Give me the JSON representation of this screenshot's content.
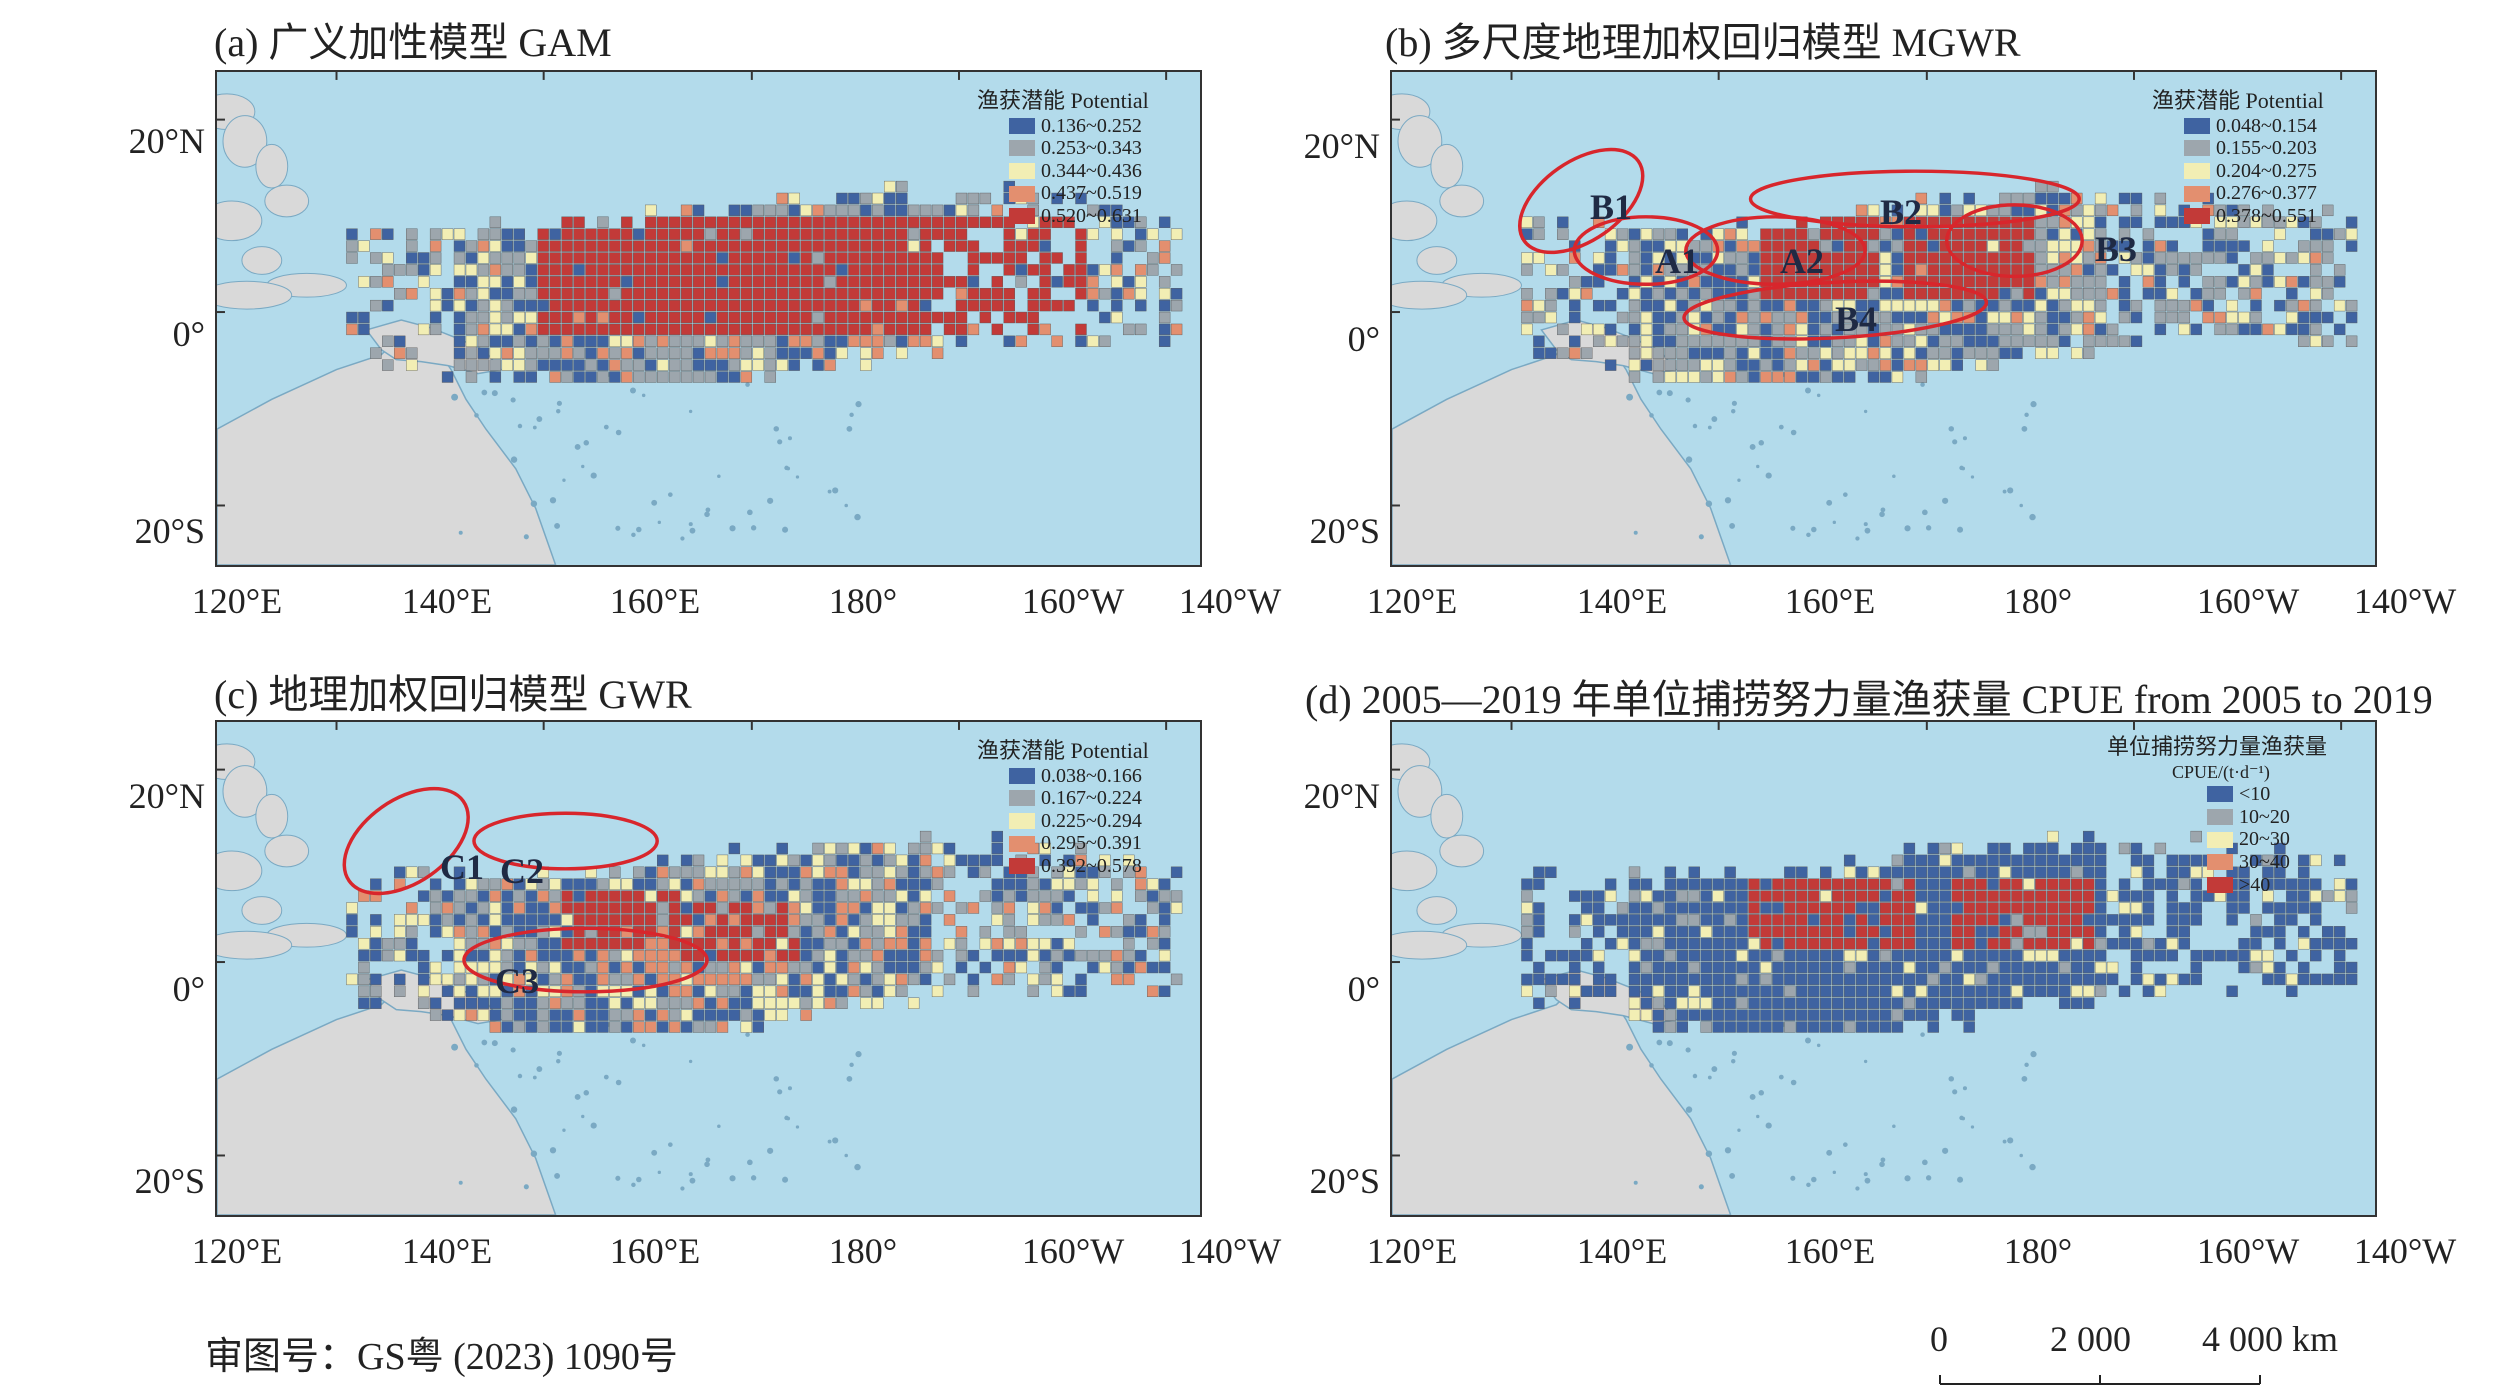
{
  "panels": [
    {
      "title": "(a) 广义加性模型 GAM",
      "legend_title": "渔获潜能 Potential",
      "legend_items": [
        {
          "label": "0.136~0.252",
          "color": "#3f63a1"
        },
        {
          "label": "0.253~0.343",
          "color": "#9da6ad"
        },
        {
          "label": "0.344~0.436",
          "color": "#f2eeb4"
        },
        {
          "label": "0.437~0.519",
          "color": "#e38f6f"
        },
        {
          "label": "0.520~0.631",
          "color": "#c23a38"
        }
      ],
      "ellipses": []
    },
    {
      "title": "(b) 多尺度地理加权回归模型 MGWR",
      "legend_title": "渔获潜能 Potential",
      "legend_items": [
        {
          "label": "0.048~0.154",
          "color": "#3f63a1"
        },
        {
          "label": "0.155~0.203",
          "color": "#9da6ad"
        },
        {
          "label": "0.204~0.275",
          "color": "#f2eeb4"
        },
        {
          "label": "0.276~0.377",
          "color": "#e38f6f"
        },
        {
          "label": "0.378~0.551",
          "color": "#c23a38"
        }
      ],
      "ellipses": [
        {
          "label": "B1"
        },
        {
          "label": "B2"
        },
        {
          "label": "A1"
        },
        {
          "label": "A2"
        },
        {
          "label": "B3"
        },
        {
          "label": "B4"
        }
      ]
    },
    {
      "title": "(c) 地理加权回归模型 GWR",
      "legend_title": "渔获潜能 Potential",
      "legend_items": [
        {
          "label": "0.038~0.166",
          "color": "#3f63a1"
        },
        {
          "label": "0.167~0.224",
          "color": "#9da6ad"
        },
        {
          "label": "0.225~0.294",
          "color": "#f2eeb4"
        },
        {
          "label": "0.295~0.391",
          "color": "#e38f6f"
        },
        {
          "label": "0.392~0.578",
          "color": "#c23a38"
        }
      ],
      "ellipses": [
        {
          "label": "C1"
        },
        {
          "label": "C2"
        },
        {
          "label": "C3"
        }
      ]
    },
    {
      "title": "(d) 2005—2019 年单位捕捞努力量渔获量 CPUE from 2005 to 2019",
      "legend_title": "单位捕捞努力量渔获量",
      "legend_subtitle": "CPUE/(t·d⁻¹)",
      "legend_items": [
        {
          "label": "<10",
          "color": "#3f63a1"
        },
        {
          "label": "10~20",
          "color": "#9da6ad"
        },
        {
          "label": "20~30",
          "color": "#f2eeb4"
        },
        {
          "label": "30~40",
          "color": "#e38f6f"
        },
        {
          "label": ">40",
          "color": "#c23a38"
        }
      ],
      "ellipses": []
    }
  ],
  "lat_labels": [
    "20°N",
    "0°",
    "20°S"
  ],
  "lon_labels": [
    "120°E",
    "140°E",
    "160°E",
    "180°",
    "160°W",
    "140°W"
  ],
  "footer": {
    "approval": "审图号：GS粤 (2023) 1090号"
  },
  "scale_bar": {
    "labels": [
      "0",
      "2 000",
      "4 000 km"
    ]
  },
  "colors": {
    "ocean": "#b3dbeb",
    "land": "#d9d9d9",
    "ellipse": "#d8262c"
  }
}
